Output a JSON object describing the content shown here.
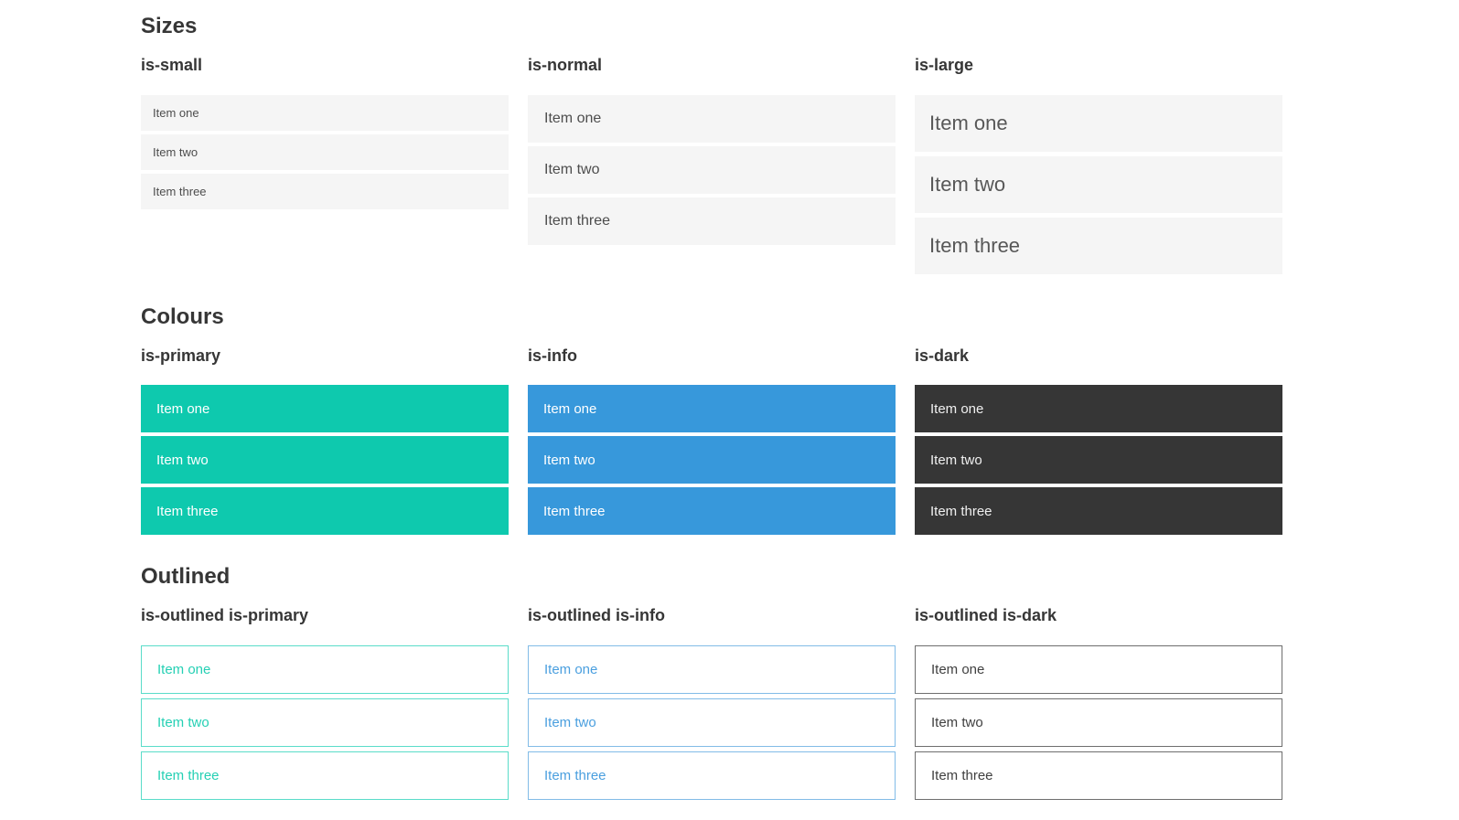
{
  "sections": [
    {
      "title": "Sizes",
      "columns": [
        {
          "heading": "is-small",
          "variant": "small",
          "items": [
            "Item one",
            "Item two",
            "Item three"
          ]
        },
        {
          "heading": "is-normal",
          "variant": "normal",
          "items": [
            "Item one",
            "Item two",
            "Item three"
          ]
        },
        {
          "heading": "is-large",
          "variant": "large",
          "items": [
            "Item one",
            "Item two",
            "Item three"
          ]
        }
      ]
    },
    {
      "title": "Colours",
      "columns": [
        {
          "heading": "is-primary",
          "variant": "primary",
          "items": [
            "Item one",
            "Item two",
            "Item three"
          ]
        },
        {
          "heading": "is-info",
          "variant": "info",
          "items": [
            "Item one",
            "Item two",
            "Item three"
          ]
        },
        {
          "heading": "is-dark",
          "variant": "dark",
          "items": [
            "Item one",
            "Item two",
            "Item three"
          ]
        }
      ]
    },
    {
      "title": "Outlined",
      "columns": [
        {
          "heading": "is-outlined is-primary",
          "variant": "outlined-primary",
          "items": [
            "Item one",
            "Item two",
            "Item three"
          ]
        },
        {
          "heading": "is-outlined is-info",
          "variant": "outlined-info",
          "items": [
            "Item one",
            "Item two",
            "Item three"
          ]
        },
        {
          "heading": "is-outlined is-dark",
          "variant": "outlined-dark",
          "items": [
            "Item one",
            "Item two",
            "Item three"
          ]
        }
      ]
    }
  ],
  "colors": {
    "primary": "#0ec9ae",
    "info": "#3798db",
    "dark": "#363636",
    "item_bg": "#f5f5f5",
    "item_text": "#4d4d4d",
    "heading_text": "#363636",
    "outlined_primary_text": "#25d0b4",
    "outlined_primary_border": "#5adcc9",
    "outlined_info_text": "#4a9fdf",
    "outlined_info_border": "#82bce7",
    "outlined_dark_text": "#404040",
    "outlined_dark_border": "#6e6e6e"
  }
}
